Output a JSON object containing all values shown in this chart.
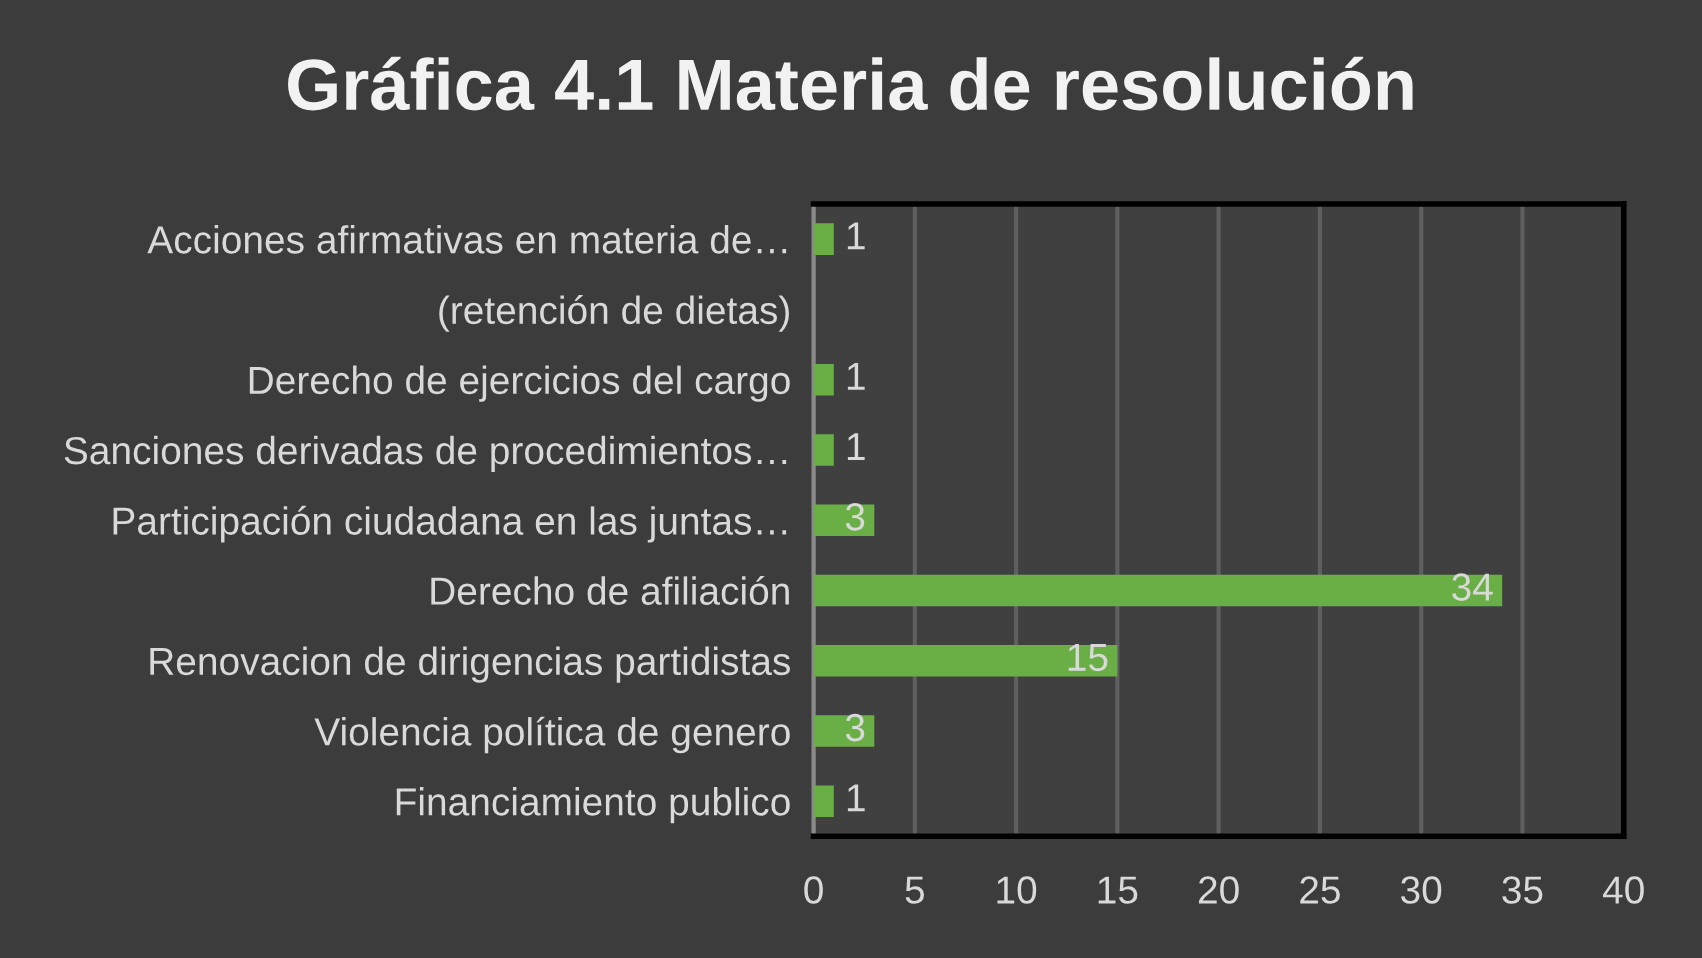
{
  "chart_data": {
    "type": "bar",
    "orientation": "horizontal",
    "title": "Gráfica 4.1 Materia de resolución",
    "categories": [
      "Acciones afirmativas en materia de…",
      "(retención de dietas)",
      "Derecho de ejercicios del cargo",
      "Sanciones derivadas de procedimientos…",
      "Participación ciudadana en las juntas…",
      "Derecho de afiliación",
      "Renovacion de dirigencias partidistas",
      "Violencia política de genero",
      "Financiamiento publico"
    ],
    "values": [
      1,
      null,
      1,
      1,
      3,
      34,
      15,
      3,
      1
    ],
    "color": "#6aaf45",
    "xlim": [
      0,
      40
    ],
    "xticks": [
      0,
      5,
      10,
      15,
      20,
      25,
      30,
      35,
      40
    ],
    "grid": "x",
    "data_labels": true
  }
}
